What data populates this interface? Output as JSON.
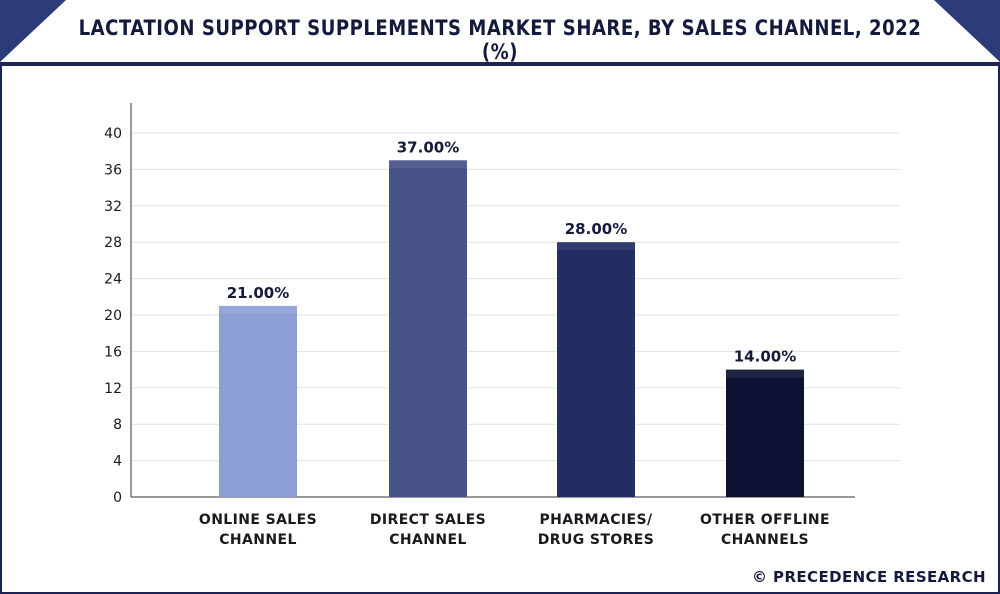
{
  "title": "LACTATION SUPPORT SUPPLEMENTS MARKET SHARE, BY SALES CHANNEL, 2022 (%)",
  "watermark": "© PRECEDENCE RESEARCH",
  "colors": {
    "frame": "#1b2453",
    "corner_accent": "#2e3b7a",
    "grid": "#e3e3e3",
    "axis": "#333333"
  },
  "chart_data": {
    "type": "bar",
    "categories": [
      [
        "ONLINE SALES",
        "CHANNEL"
      ],
      [
        "DIRECT SALES",
        "CHANNEL"
      ],
      [
        "PHARMACIES/",
        "DRUG STORES"
      ],
      [
        "OTHER OFFLINE",
        "CHANNELS"
      ]
    ],
    "values": [
      21.0,
      37.0,
      28.0,
      14.0
    ],
    "data_labels": [
      "21.00%",
      "37.00%",
      "28.00%",
      "14.00%"
    ],
    "bar_colors": [
      "#8c9fd4",
      "#475289",
      "#232c63",
      "#0d1234"
    ],
    "yticks": [
      0,
      4,
      8,
      12,
      16,
      20,
      24,
      28,
      32,
      36,
      40
    ],
    "ylim": [
      0,
      40
    ],
    "grid": true,
    "xlabel": "",
    "ylabel": ""
  }
}
